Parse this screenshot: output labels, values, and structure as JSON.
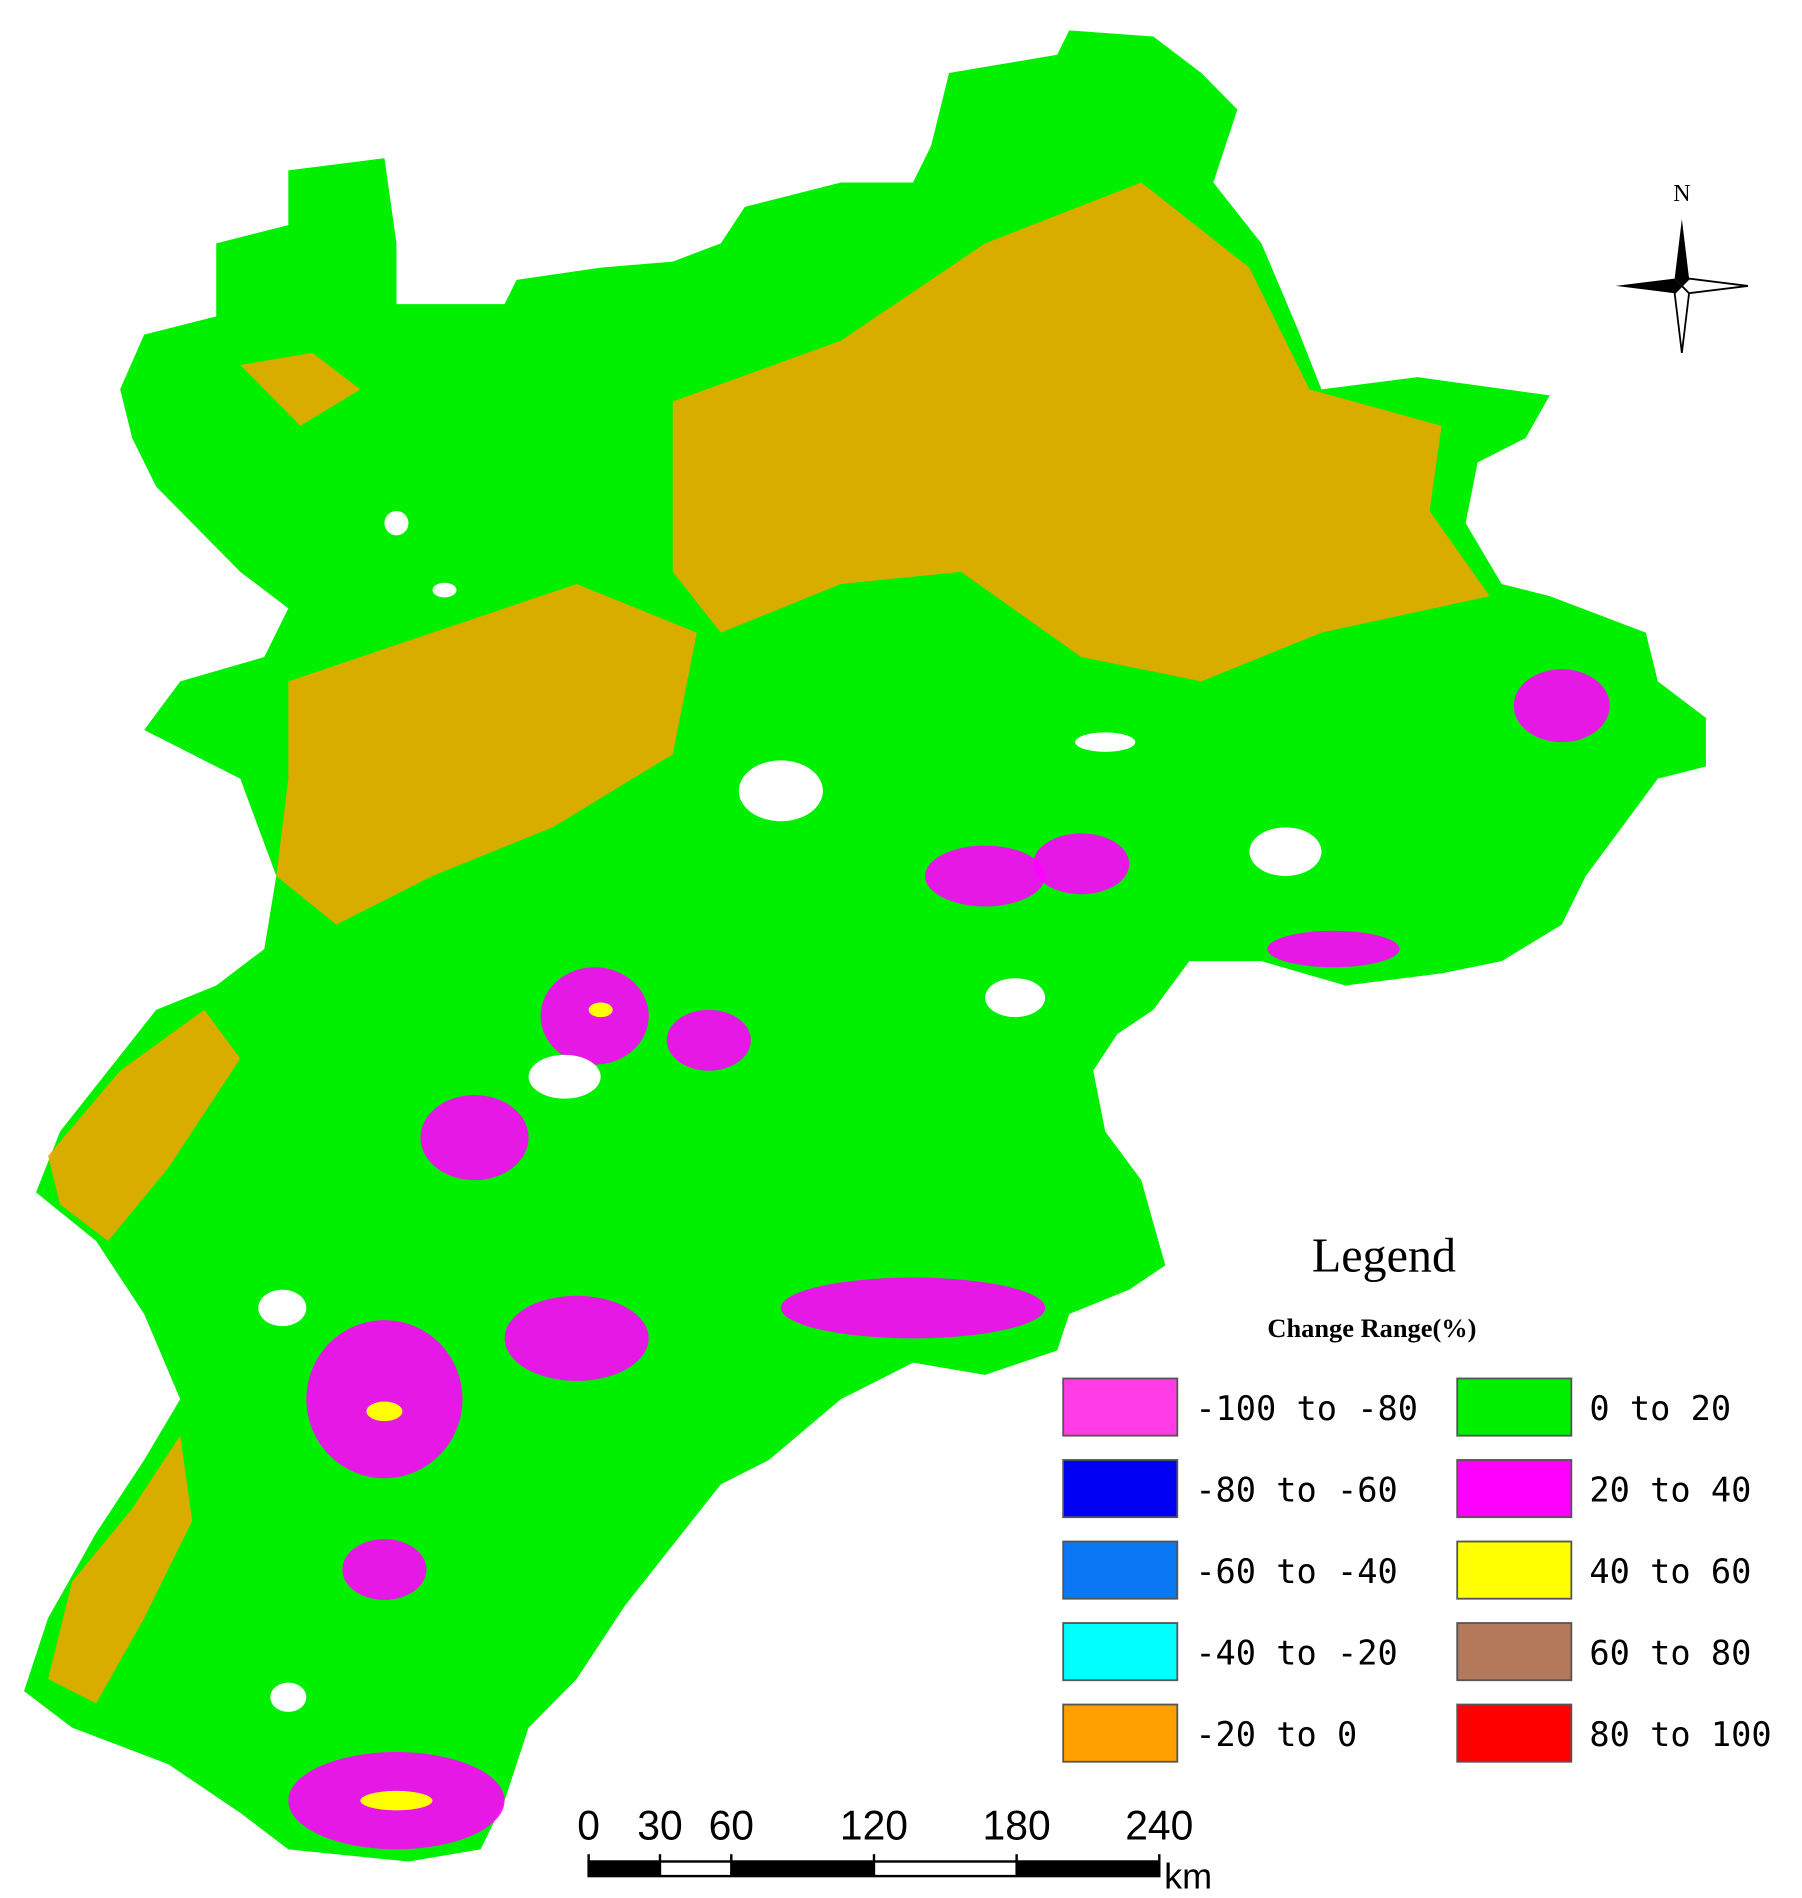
{
  "map": {
    "north_label": "N",
    "legend": {
      "title": "Legend",
      "subtitle": "Change Range(%)",
      "items": [
        {
          "label": "-100 to -80",
          "color": "#ff3ce6"
        },
        {
          "label": "-80 to -60",
          "color": "#0000f5"
        },
        {
          "label": "-60 to -40",
          "color": "#0a78f5"
        },
        {
          "label": "-40 to -20",
          "color": "#00ffff"
        },
        {
          "label": "-20 to 0",
          "color": "#ffa000"
        },
        {
          "label": "0 to 20",
          "color": "#00f000"
        },
        {
          "label": "20 to 40",
          "color": "#ff00ff"
        },
        {
          "label": "40 to 60",
          "color": "#ffff00"
        },
        {
          "label": "60 to 80",
          "color": "#b4785a"
        },
        {
          "label": "80 to 100",
          "color": "#ff0000"
        }
      ]
    },
    "scale_bar": {
      "ticks": [
        0,
        30,
        60,
        120,
        180,
        240
      ],
      "unit": "km"
    }
  }
}
